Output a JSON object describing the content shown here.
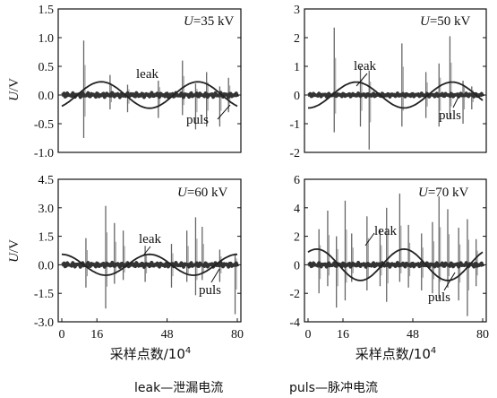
{
  "chart_data": [
    {
      "type": "line",
      "voltage_symbol": "U",
      "voltage_value": "=35 kV",
      "ylabel_symbol": "U",
      "ylabel_unit": "/V",
      "ylim": [
        -1.0,
        1.5
      ],
      "yticks": [
        "1.5",
        "1.0",
        "0.5",
        "0.0",
        "-0.5",
        "-1.0"
      ],
      "xlim": [
        0,
        80
      ],
      "xticks": [],
      "series": [
        {
          "name": "leak",
          "amplitude": 0.23,
          "phase_offset": 18,
          "period": 44
        },
        {
          "name": "puls",
          "amplitude": 0.04,
          "spikes": [
            [
              10,
              0.95,
              -0.75
            ],
            [
              22,
              0.35,
              -0.25
            ],
            [
              30,
              0.18,
              -0.3
            ],
            [
              44,
              0.25,
              -0.4
            ],
            [
              55,
              0.6,
              -0.35
            ],
            [
              61,
              0.2,
              -0.6
            ],
            [
              66,
              0.4,
              -0.55
            ],
            [
              72,
              0.15,
              -0.55
            ],
            [
              76,
              0.3,
              -0.3
            ]
          ]
        }
      ],
      "annotations": [
        "leak",
        "puls"
      ],
      "grid": false
    },
    {
      "type": "line",
      "voltage_symbol": "U",
      "voltage_value": "=50 kV",
      "ylabel_symbol": "",
      "ylabel_unit": "",
      "ylim": [
        -2,
        3
      ],
      "yticks": [
        "3",
        "2",
        "1",
        "0",
        "-1",
        "-2"
      ],
      "xlim": [
        0,
        80
      ],
      "xticks": [],
      "series": [
        {
          "name": "leak",
          "amplitude": 0.45,
          "phase_offset": 22,
          "period": 44
        },
        {
          "name": "puls",
          "amplitude": 0.06,
          "spikes": [
            [
              12,
              2.35,
              -1.3
            ],
            [
              24,
              1.0,
              -1.1
            ],
            [
              28,
              0.85,
              -1.9
            ],
            [
              43,
              1.8,
              -1.1
            ],
            [
              54,
              0.8,
              -0.8
            ],
            [
              60,
              1.1,
              -1.1
            ],
            [
              65,
              2.05,
              -0.8
            ],
            [
              71,
              0.5,
              -1.0
            ],
            [
              75,
              0.3,
              -0.5
            ]
          ]
        }
      ],
      "annotations": [
        "leak",
        "puls"
      ],
      "grid": false
    },
    {
      "type": "line",
      "voltage_symbol": "U",
      "voltage_value": "=60 kV",
      "ylabel_symbol": "U",
      "ylabel_unit": "/V",
      "ylim": [
        -3.0,
        4.5
      ],
      "yticks": [
        "4.5",
        "3.0",
        "1.5",
        "0.0",
        "-1.5",
        "-3.0"
      ],
      "xlim": [
        0,
        80
      ],
      "xticks": [
        "0",
        "16",
        "48",
        "80"
      ],
      "series": [
        {
          "name": "leak",
          "amplitude": 0.55,
          "phase_offset": 0,
          "period": 40
        },
        {
          "name": "puls",
          "amplitude": 0.12,
          "spikes": [
            [
              11,
              1.4,
              -1.2
            ],
            [
              20,
              3.1,
              -2.3
            ],
            [
              24,
              2.2,
              -1.0
            ],
            [
              28,
              1.8,
              -0.8
            ],
            [
              38,
              1.0,
              -0.9
            ],
            [
              50,
              1.1,
              -1.2
            ],
            [
              57,
              1.8,
              -0.9
            ],
            [
              61,
              2.5,
              -1.6
            ],
            [
              64,
              2.0,
              -0.8
            ],
            [
              72,
              0.8,
              -0.9
            ],
            [
              79,
              0.6,
              -2.6
            ]
          ]
        }
      ],
      "annotations": [
        "leak",
        "puls"
      ],
      "grid": false
    },
    {
      "type": "line",
      "voltage_symbol": "U",
      "voltage_value": "=70 kV",
      "ylabel_symbol": "",
      "ylabel_unit": "",
      "ylim": [
        -4,
        6
      ],
      "yticks": [
        "6",
        "4",
        "2",
        "0",
        "-2",
        "-4"
      ],
      "xlim": [
        0,
        80
      ],
      "xticks": [
        "0",
        "16",
        "48",
        "80"
      ],
      "series": [
        {
          "name": "leak",
          "amplitude": 1.1,
          "phase_offset": 4,
          "period": 40
        },
        {
          "name": "puls",
          "amplitude": 0.15,
          "spikes": [
            [
              5,
              2.5,
              -2.0
            ],
            [
              9,
              3.8,
              -1.5
            ],
            [
              13,
              2.0,
              -3.0
            ],
            [
              17,
              4.5,
              -2.5
            ],
            [
              20,
              2.2,
              -1.2
            ],
            [
              27,
              3.4,
              -1.8
            ],
            [
              33,
              2.5,
              -1.5
            ],
            [
              36,
              4.0,
              -2.6
            ],
            [
              42,
              5.0,
              -1.2
            ],
            [
              46,
              2.8,
              -1.6
            ],
            [
              52,
              2.2,
              -1.8
            ],
            [
              57,
              3.0,
              -2.0
            ],
            [
              60,
              4.8,
              -2.4
            ],
            [
              64,
              3.9,
              -1.6
            ],
            [
              69,
              2.6,
              -2.5
            ],
            [
              73,
              3.2,
              -3.6
            ],
            [
              77,
              1.8,
              -1.5
            ]
          ]
        }
      ],
      "annotations": [
        "leak",
        "puls"
      ],
      "grid": false
    }
  ],
  "shared_xlabel": "采样点数/10",
  "shared_xlabel_sup": "4",
  "legend_note": {
    "leak": "leak—泄漏电流",
    "puls": "puls—脉冲电流"
  }
}
